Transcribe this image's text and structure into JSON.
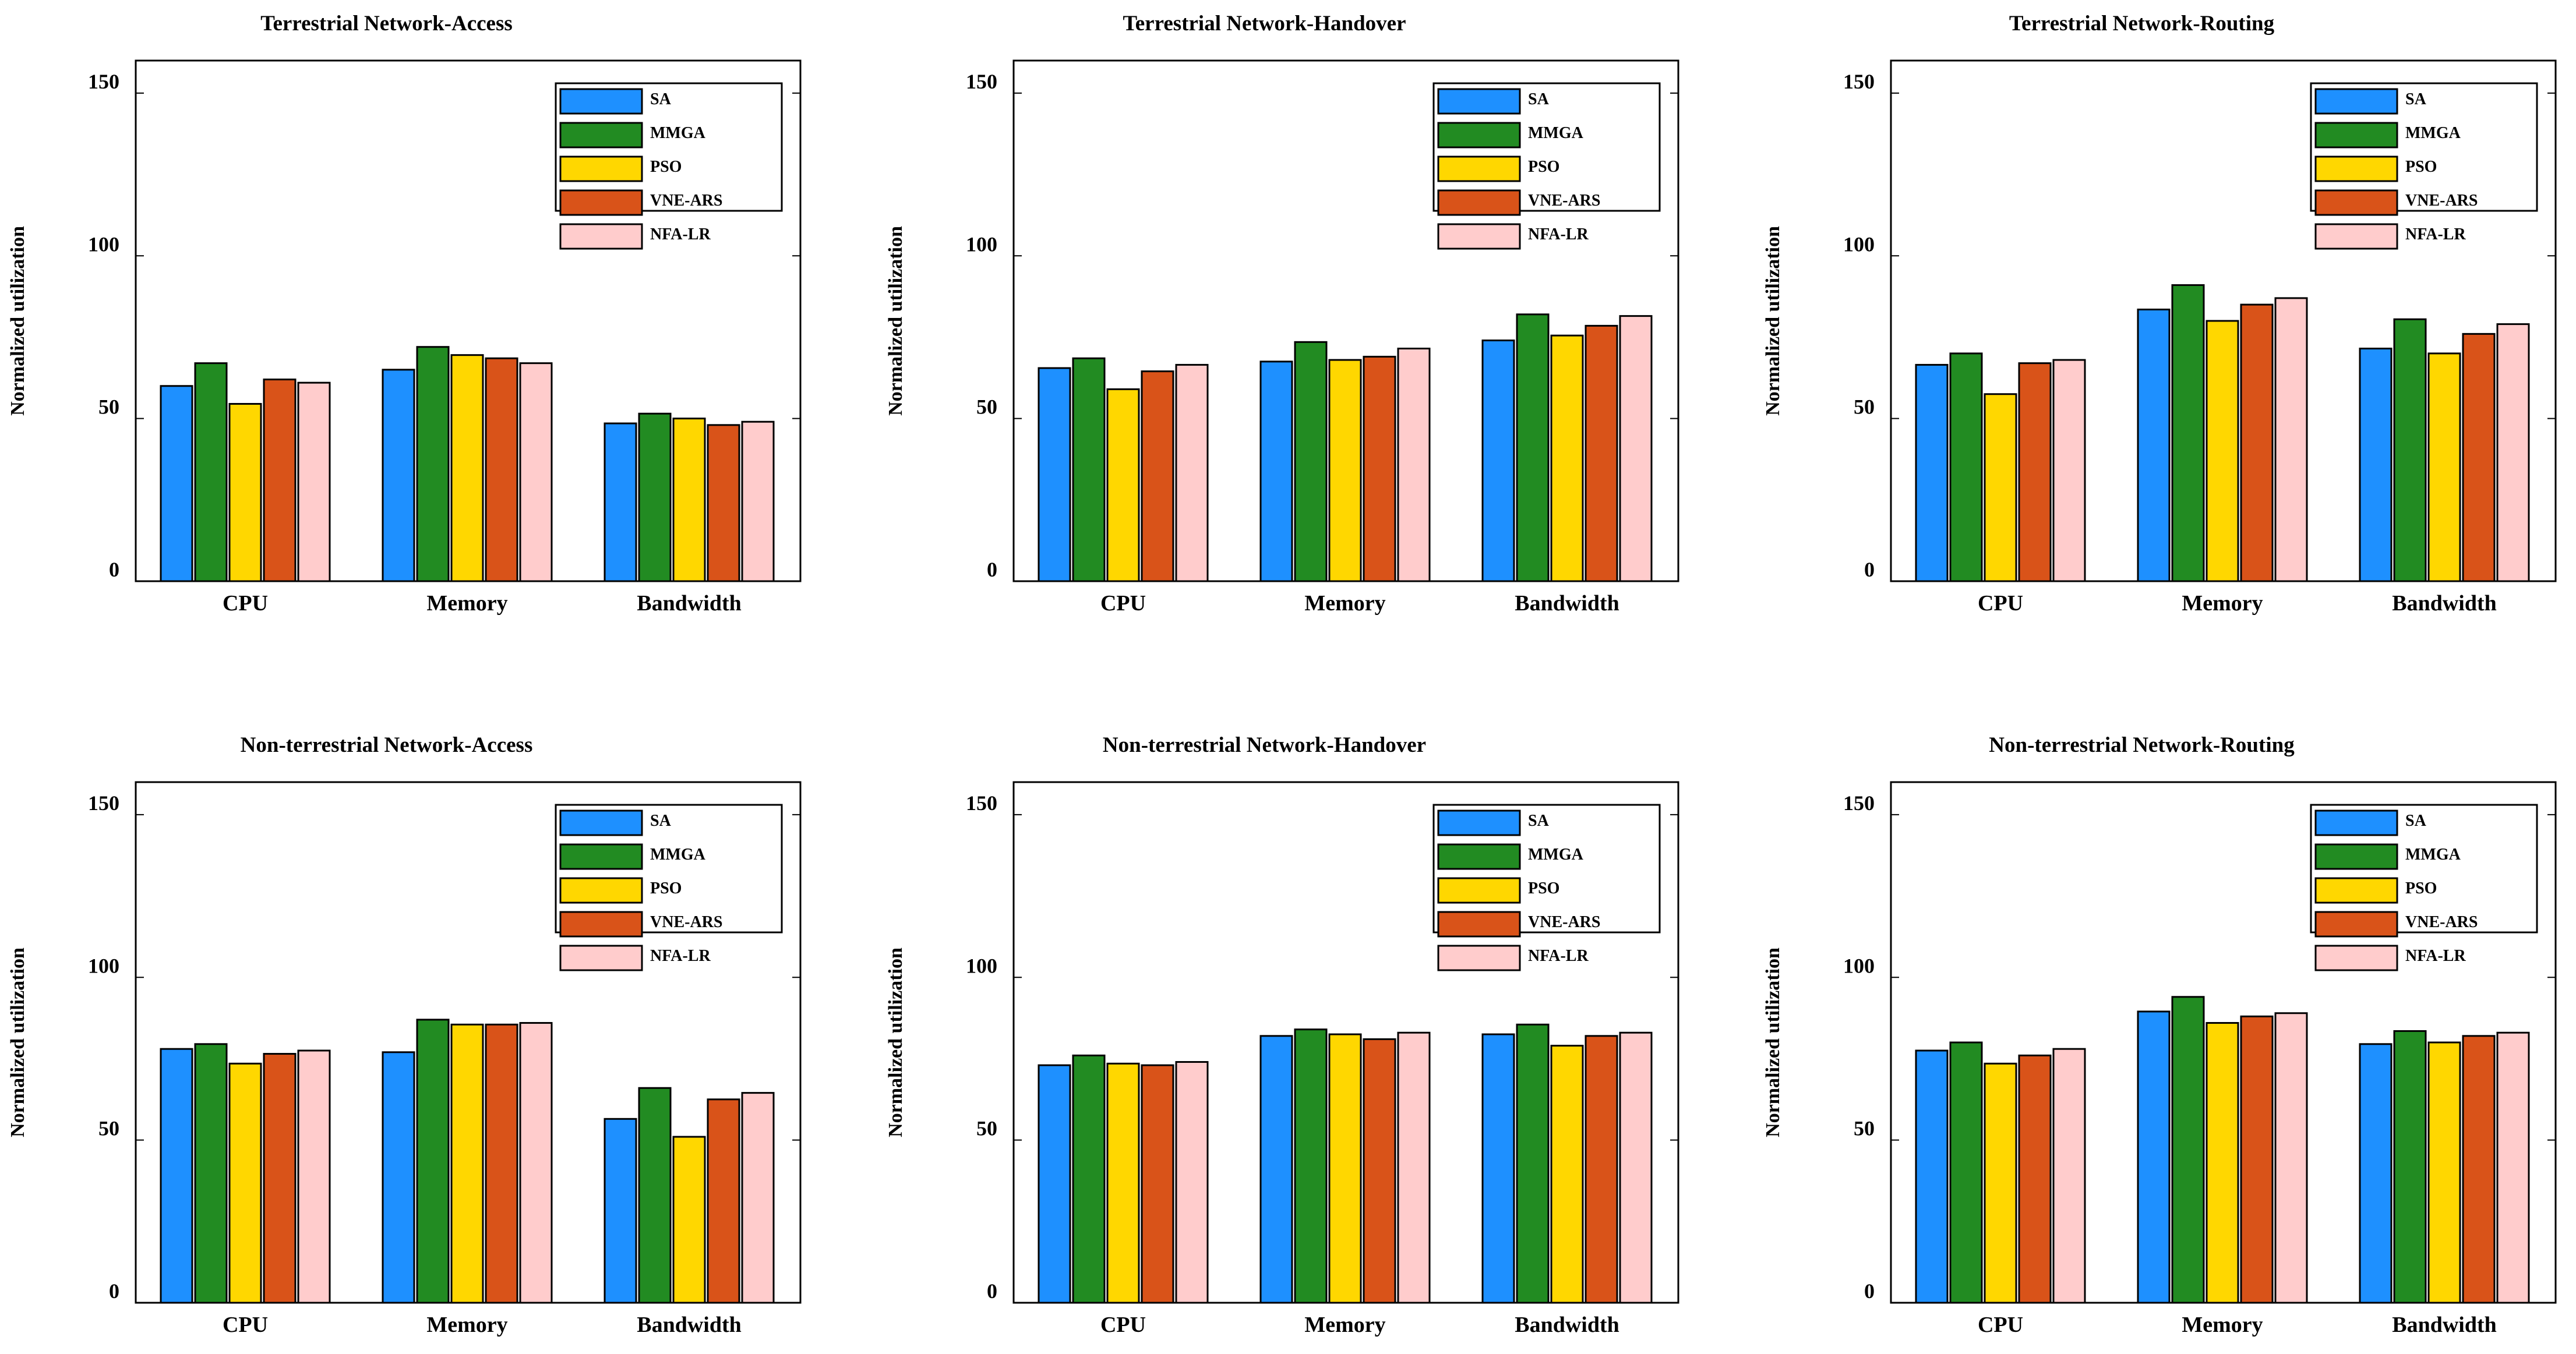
{
  "chart_data": [
    {
      "type": "bar",
      "title": "Terrestrial Network-Access",
      "ylabel": "Normalized utilization",
      "xlabel": "",
      "ylim": [
        0,
        160
      ],
      "yticks": [
        0,
        50,
        100,
        150
      ],
      "categories": [
        "CPU",
        "Memory",
        "Bandwidth"
      ],
      "legend_position": "top-right",
      "series": [
        {
          "name": "SA",
          "color": "#1e90ff",
          "values": [
            60,
            65,
            48.5
          ]
        },
        {
          "name": "MMGA",
          "color": "#228b22",
          "values": [
            67,
            72,
            51.5
          ]
        },
        {
          "name": "PSO",
          "color": "#ffd700",
          "values": [
            54.5,
            69.5,
            50
          ]
        },
        {
          "name": "VNE-ARS",
          "color": "#d95319",
          "values": [
            62,
            68.5,
            48
          ]
        },
        {
          "name": "NFA-LR",
          "color": "#ffcccc",
          "values": [
            61,
            67,
            49
          ]
        }
      ]
    },
    {
      "type": "bar",
      "title": "Terrestrial Network-Handover",
      "ylabel": "Normalized utilization",
      "xlabel": "",
      "ylim": [
        0,
        160
      ],
      "yticks": [
        0,
        50,
        100,
        150
      ],
      "categories": [
        "CPU",
        "Memory",
        "Bandwidth"
      ],
      "legend_position": "top-right",
      "series": [
        {
          "name": "SA",
          "color": "#1e90ff",
          "values": [
            65.5,
            67.5,
            74
          ]
        },
        {
          "name": "MMGA",
          "color": "#228b22",
          "values": [
            68.5,
            73.5,
            82
          ]
        },
        {
          "name": "PSO",
          "color": "#ffd700",
          "values": [
            59,
            68,
            75.5
          ]
        },
        {
          "name": "VNE-ARS",
          "color": "#d95319",
          "values": [
            64.5,
            69,
            78.5
          ]
        },
        {
          "name": "NFA-LR",
          "color": "#ffcccc",
          "values": [
            66.5,
            71.5,
            81.5
          ]
        }
      ]
    },
    {
      "type": "bar",
      "title": "Terrestrial Network-Routing",
      "ylabel": "Normalized utilization",
      "xlabel": "",
      "ylim": [
        0,
        160
      ],
      "yticks": [
        0,
        50,
        100,
        150
      ],
      "categories": [
        "CPU",
        "Memory",
        "Bandwidth"
      ],
      "legend_position": "top-right",
      "series": [
        {
          "name": "SA",
          "color": "#1e90ff",
          "values": [
            66.5,
            83.5,
            71.5
          ]
        },
        {
          "name": "MMGA",
          "color": "#228b22",
          "values": [
            70,
            91,
            80.5
          ]
        },
        {
          "name": "PSO",
          "color": "#ffd700",
          "values": [
            57.5,
            80,
            70
          ]
        },
        {
          "name": "VNE-ARS",
          "color": "#d95319",
          "values": [
            67,
            85,
            76
          ]
        },
        {
          "name": "NFA-LR",
          "color": "#ffcccc",
          "values": [
            68,
            87,
            79
          ]
        }
      ]
    },
    {
      "type": "bar",
      "title": "Non-terrestrial Network-Access",
      "ylabel": "Normalized utilization",
      "xlabel": "",
      "ylim": [
        0,
        160
      ],
      "yticks": [
        0,
        50,
        100,
        150
      ],
      "categories": [
        "CPU",
        "Memory",
        "Bandwidth"
      ],
      "legend_position": "top-right",
      "series": [
        {
          "name": "SA",
          "color": "#1e90ff",
          "values": [
            78,
            77,
            56.5
          ]
        },
        {
          "name": "MMGA",
          "color": "#228b22",
          "values": [
            79.5,
            87,
            66
          ]
        },
        {
          "name": "PSO",
          "color": "#ffd700",
          "values": [
            73.5,
            85.5,
            51
          ]
        },
        {
          "name": "VNE-ARS",
          "color": "#d95319",
          "values": [
            76.5,
            85.5,
            62.5
          ]
        },
        {
          "name": "NFA-LR",
          "color": "#ffcccc",
          "values": [
            77.5,
            86,
            64.5
          ]
        }
      ]
    },
    {
      "type": "bar",
      "title": "Non-terrestrial Network-Handover",
      "ylabel": "Normalized utilization",
      "xlabel": "",
      "ylim": [
        0,
        160
      ],
      "yticks": [
        0,
        50,
        100,
        150
      ],
      "categories": [
        "CPU",
        "Memory",
        "Bandwidth"
      ],
      "legend_position": "top-right",
      "series": [
        {
          "name": "SA",
          "color": "#1e90ff",
          "values": [
            73,
            82,
            82.5
          ]
        },
        {
          "name": "MMGA",
          "color": "#228b22",
          "values": [
            76,
            84,
            85.5
          ]
        },
        {
          "name": "PSO",
          "color": "#ffd700",
          "values": [
            73.5,
            82.5,
            79
          ]
        },
        {
          "name": "VNE-ARS",
          "color": "#d95319",
          "values": [
            73,
            81,
            82
          ]
        },
        {
          "name": "NFA-LR",
          "color": "#ffcccc",
          "values": [
            74,
            83,
            83
          ]
        }
      ]
    },
    {
      "type": "bar",
      "title": "Non-terrestrial Network-Routing",
      "ylabel": "Normalized utilization",
      "xlabel": "",
      "ylim": [
        0,
        160
      ],
      "yticks": [
        0,
        50,
        100,
        150
      ],
      "categories": [
        "CPU",
        "Memory",
        "Bandwidth"
      ],
      "legend_position": "top-right",
      "series": [
        {
          "name": "SA",
          "color": "#1e90ff",
          "values": [
            77.5,
            89.5,
            79.5
          ]
        },
        {
          "name": "MMGA",
          "color": "#228b22",
          "values": [
            80,
            94,
            83.5
          ]
        },
        {
          "name": "PSO",
          "color": "#ffd700",
          "values": [
            73.5,
            86,
            80
          ]
        },
        {
          "name": "VNE-ARS",
          "color": "#d95319",
          "values": [
            76,
            88,
            82
          ]
        },
        {
          "name": "NFA-LR",
          "color": "#ffcccc",
          "values": [
            78,
            89,
            83
          ]
        }
      ]
    }
  ]
}
